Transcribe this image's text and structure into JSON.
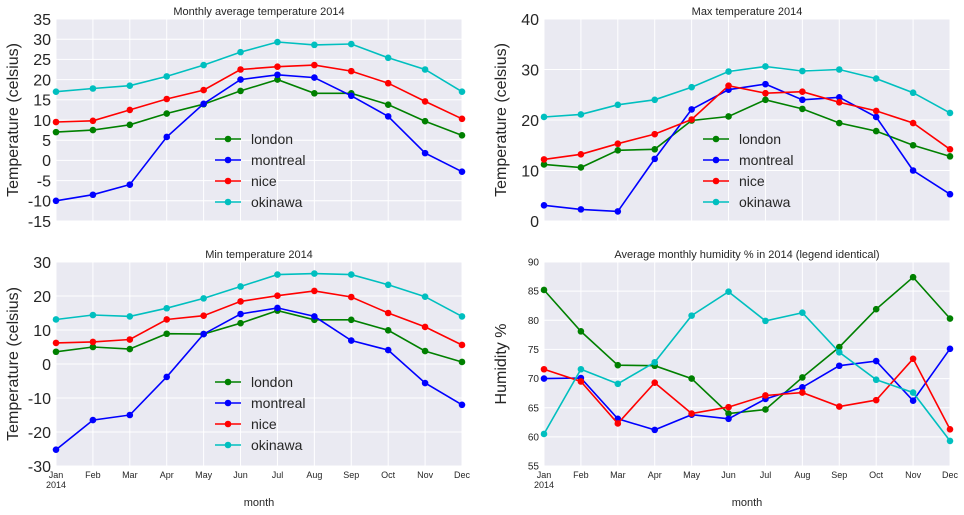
{
  "colors": {
    "london": "#008000",
    "montreal": "#0000ff",
    "nice": "#ff0000",
    "okinawa": "#00bfbf"
  },
  "months": [
    "Jan",
    "Feb",
    "Mar",
    "Apr",
    "May",
    "Jun",
    "Jul",
    "Aug",
    "Sep",
    "Oct",
    "Nov",
    "Dec"
  ],
  "year_label": "2014",
  "xlabel": "month",
  "chart_data": [
    {
      "type": "line",
      "title": "Monthly average temperature 2014",
      "ylabel": "Temperature (celsius)",
      "ylim": [
        -15,
        35
      ],
      "yticks": [
        -15,
        -10,
        -5,
        0,
        5,
        10,
        15,
        20,
        25,
        30,
        35
      ],
      "legend": "lower-center",
      "grid": true,
      "series": [
        {
          "name": "london",
          "values": [
            7.0,
            7.5,
            8.8,
            11.6,
            13.9,
            17.2,
            20.0,
            16.6,
            16.6,
            13.8,
            9.7,
            6.2
          ]
        },
        {
          "name": "montreal",
          "values": [
            -10.0,
            -8.5,
            -6.0,
            5.8,
            14.0,
            20.0,
            21.2,
            20.5,
            16.0,
            10.9,
            1.8,
            -2.8
          ]
        },
        {
          "name": "nice",
          "values": [
            9.5,
            9.8,
            12.5,
            15.2,
            17.4,
            22.5,
            23.2,
            23.6,
            22.1,
            19.1,
            14.6,
            10.3
          ]
        },
        {
          "name": "okinawa",
          "values": [
            17.0,
            17.8,
            18.5,
            20.8,
            23.6,
            26.8,
            29.3,
            28.6,
            28.8,
            25.4,
            22.5,
            17.0
          ]
        }
      ]
    },
    {
      "type": "line",
      "title": "Max temperature 2014",
      "ylabel": "Temperature (celsius)",
      "ylim": [
        0,
        40
      ],
      "yticks": [
        0,
        10,
        20,
        30,
        40
      ],
      "legend": "lower-center",
      "grid": true,
      "series": [
        {
          "name": "london",
          "values": [
            11.2,
            10.6,
            14.0,
            14.2,
            19.9,
            20.7,
            24.0,
            22.2,
            19.4,
            17.8,
            15.0,
            12.8
          ]
        },
        {
          "name": "montreal",
          "values": [
            3.1,
            2.3,
            1.9,
            12.3,
            22.1,
            26.0,
            27.1,
            24.0,
            24.5,
            20.6,
            10.0,
            5.3
          ]
        },
        {
          "name": "nice",
          "values": [
            12.2,
            13.2,
            15.3,
            17.2,
            20.1,
            26.8,
            25.3,
            25.6,
            23.5,
            21.8,
            19.4,
            14.2
          ]
        },
        {
          "name": "okinawa",
          "values": [
            20.6,
            21.1,
            23.0,
            24.0,
            26.5,
            29.6,
            30.6,
            29.7,
            30.0,
            28.2,
            25.4,
            21.4
          ]
        }
      ]
    },
    {
      "type": "line",
      "title": "Min temperature 2014",
      "ylabel": "Temperature (celsius)",
      "ylim": [
        -30,
        30
      ],
      "yticks": [
        -30,
        -20,
        -10,
        0,
        10,
        20,
        30
      ],
      "legend": "lower-center",
      "grid": true,
      "series": [
        {
          "name": "london",
          "values": [
            3.6,
            5.0,
            4.4,
            8.9,
            8.8,
            12.0,
            15.7,
            13.0,
            13.0,
            9.9,
            3.8,
            0.6
          ]
        },
        {
          "name": "montreal",
          "values": [
            -25.2,
            -16.5,
            -15.0,
            -3.8,
            8.8,
            14.7,
            16.5,
            14.0,
            6.9,
            4.1,
            -5.6,
            -12.0
          ]
        },
        {
          "name": "nice",
          "values": [
            6.2,
            6.5,
            7.2,
            13.1,
            14.2,
            18.4,
            20.1,
            21.5,
            19.7,
            15.0,
            10.9,
            5.6
          ]
        },
        {
          "name": "okinawa",
          "values": [
            13.1,
            14.4,
            14.0,
            16.4,
            19.3,
            22.8,
            26.3,
            26.6,
            26.3,
            23.3,
            19.8,
            14.0
          ]
        }
      ]
    },
    {
      "type": "line",
      "title": "Average monthly humidity % in 2014 (legend identical)",
      "ylabel": "Humidity %",
      "ylim": [
        55,
        90
      ],
      "yticks": [
        55,
        60,
        65,
        70,
        75,
        80,
        85,
        90
      ],
      "legend": "none",
      "grid": true,
      "series": [
        {
          "name": "london",
          "values": [
            85.2,
            78.1,
            72.3,
            72.2,
            70.0,
            64.0,
            64.7,
            70.2,
            75.4,
            81.9,
            87.4,
            80.3
          ]
        },
        {
          "name": "montreal",
          "values": [
            70.0,
            70.1,
            63.1,
            61.2,
            63.8,
            63.1,
            66.5,
            68.5,
            72.2,
            73.0,
            66.2,
            75.1
          ]
        },
        {
          "name": "nice",
          "values": [
            71.6,
            69.5,
            62.3,
            69.3,
            64.0,
            65.1,
            67.1,
            67.6,
            65.2,
            66.3,
            73.4,
            61.3
          ]
        },
        {
          "name": "okinawa",
          "values": [
            60.5,
            71.6,
            69.1,
            72.8,
            80.8,
            84.9,
            79.9,
            81.3,
            74.5,
            69.8,
            67.6,
            59.3
          ]
        }
      ]
    }
  ]
}
